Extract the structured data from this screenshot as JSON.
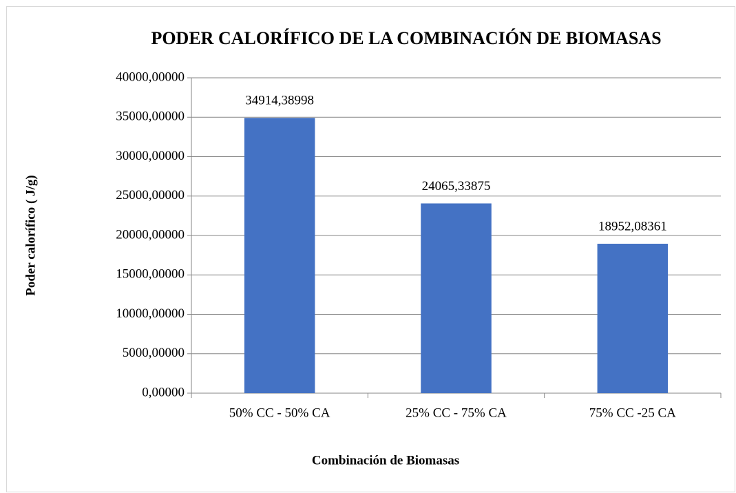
{
  "chart_data": {
    "type": "bar",
    "title": "PODER CALORÍFICO DE LA COMBINACIÓN DE BIOMASAS",
    "x_label": "Combinación de Biomasas",
    "y_label": "Poder calorífico ( J/g)",
    "categories": [
      "50% CC - 50% CA",
      "25% CC - 75% CA",
      "75% CC -25 CA"
    ],
    "values": [
      34914.38998,
      24065.33875,
      18952.08361
    ],
    "value_labels": [
      "34914,38998",
      "24065,33875",
      "18952,08361"
    ],
    "color": "#4472c4",
    "ylim": [
      0,
      40000
    ],
    "yticks": [
      {
        "value": 0,
        "label": "0,00000"
      },
      {
        "value": 5000,
        "label": "5000,00000"
      },
      {
        "value": 10000,
        "label": "10000,00000"
      },
      {
        "value": 15000,
        "label": "15000,00000"
      },
      {
        "value": 20000,
        "label": "20000,00000"
      },
      {
        "value": 25000,
        "label": "25000,00000"
      },
      {
        "value": 30000,
        "label": "30000,00000"
      },
      {
        "value": 35000,
        "label": "35000,00000"
      },
      {
        "value": 40000,
        "label": "40000,00000"
      }
    ],
    "grid": true
  }
}
